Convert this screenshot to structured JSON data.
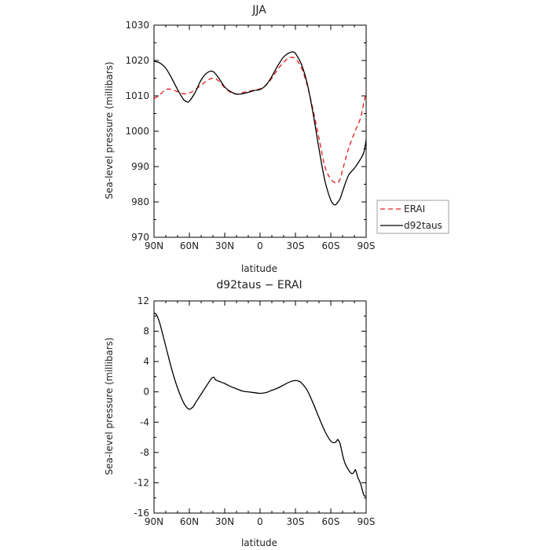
{
  "chart_data": [
    {
      "type": "line",
      "title": "JJA",
      "xlabel": "latitude",
      "ylabel": "Sea-level pressure (millibars)",
      "x_tick_labels": [
        "90N",
        "60N",
        "30N",
        "0",
        "30S",
        "60S",
        "90S"
      ],
      "x_ticks": [
        90,
        60,
        30,
        0,
        -30,
        -60,
        -90
      ],
      "xlim": [
        90,
        -90
      ],
      "ylim": [
        970,
        1030
      ],
      "y_ticks": [
        970,
        980,
        990,
        1000,
        1010,
        1020,
        1030
      ],
      "legend": {
        "placement": "right",
        "entries": [
          "ERAI",
          "d92taus"
        ]
      },
      "series": [
        {
          "name": "ERAI",
          "color": "#e41a1c",
          "dash": true,
          "x": [
            90,
            85,
            80,
            75,
            70,
            65,
            60,
            55,
            50,
            45,
            40,
            35,
            30,
            25,
            20,
            15,
            10,
            5,
            0,
            -5,
            -10,
            -15,
            -20,
            -25,
            -30,
            -35,
            -40,
            -45,
            -50,
            -55,
            -60,
            -65,
            -68,
            -70,
            -75,
            -80,
            -85,
            -88,
            -90
          ],
          "y": [
            1009.2,
            1010.3,
            1011.8,
            1011.8,
            1011.2,
            1010.6,
            1010.8,
            1011.8,
            1013.0,
            1014.3,
            1015.0,
            1014.2,
            1012.3,
            1011.0,
            1010.5,
            1010.9,
            1011.3,
            1011.6,
            1012.0,
            1013.0,
            1015.0,
            1017.5,
            1019.5,
            1020.8,
            1020.5,
            1018.0,
            1013.0,
            1006.0,
            998.0,
            990.0,
            986.5,
            985.3,
            986.5,
            989.0,
            995.0,
            999.5,
            1003.5,
            1008.0,
            1011.0
          ]
        },
        {
          "name": "d92taus",
          "color": "#000000",
          "dash": false,
          "x": [
            90,
            85,
            80,
            75,
            70,
            65,
            62,
            60,
            55,
            50,
            45,
            40,
            35,
            30,
            25,
            20,
            15,
            10,
            5,
            0,
            -5,
            -10,
            -15,
            -20,
            -25,
            -28,
            -30,
            -35,
            -40,
            -45,
            -50,
            -55,
            -60,
            -63,
            -65,
            -68,
            -70,
            -75,
            -80,
            -85,
            -88,
            -90
          ],
          "y": [
            1019.8,
            1019.3,
            1017.8,
            1015.0,
            1011.8,
            1009.0,
            1008.3,
            1008.5,
            1011.0,
            1014.5,
            1016.5,
            1016.9,
            1015.0,
            1012.5,
            1011.2,
            1010.5,
            1010.6,
            1011.0,
            1011.5,
            1011.8,
            1013.0,
            1015.5,
            1018.5,
            1021.0,
            1022.2,
            1022.4,
            1022.0,
            1019.0,
            1013.5,
            1005.0,
            995.0,
            986.0,
            980.5,
            979.2,
            979.5,
            981.0,
            983.0,
            987.5,
            989.5,
            992.0,
            994.0,
            997.5
          ]
        }
      ]
    },
    {
      "type": "line",
      "title": "d92taus − ERAI",
      "xlabel": "latitude",
      "ylabel": "Sea-level pressure (millibars)",
      "x_tick_labels": [
        "90N",
        "60N",
        "30N",
        "0",
        "30S",
        "60S",
        "90S"
      ],
      "x_ticks": [
        90,
        60,
        30,
        0,
        -30,
        -60,
        -90
      ],
      "xlim": [
        90,
        -90
      ],
      "ylim": [
        -16,
        12
      ],
      "y_ticks": [
        -16,
        -12,
        -8,
        -4,
        0,
        4,
        8,
        12
      ],
      "series": [
        {
          "color": "#000000",
          "dash": false,
          "x": [
            90,
            88,
            85,
            80,
            75,
            70,
            65,
            62,
            60,
            57,
            55,
            50,
            45,
            41,
            39,
            38,
            35,
            30,
            25,
            20,
            15,
            10,
            5,
            0,
            -5,
            -10,
            -15,
            -20,
            -25,
            -30,
            -33,
            -35,
            -40,
            -45,
            -50,
            -55,
            -60,
            -63,
            -65,
            -66,
            -68,
            -70,
            -72,
            -75,
            -78,
            -80,
            -81,
            -83,
            -85,
            -86,
            -88,
            -90
          ],
          "y": [
            10.4,
            10.2,
            9.0,
            6.0,
            3.0,
            0.5,
            -1.4,
            -2.1,
            -2.3,
            -2.0,
            -1.5,
            -0.3,
            0.9,
            1.8,
            1.9,
            1.6,
            1.4,
            1.1,
            0.7,
            0.4,
            0.1,
            0.0,
            -0.1,
            -0.2,
            -0.1,
            0.2,
            0.5,
            0.9,
            1.3,
            1.5,
            1.4,
            1.2,
            0.2,
            -1.5,
            -3.4,
            -5.2,
            -6.5,
            -6.7,
            -6.5,
            -6.3,
            -6.9,
            -8.3,
            -9.4,
            -10.3,
            -10.8,
            -10.5,
            -10.3,
            -11.3,
            -12.0,
            -12.5,
            -13.6,
            -13.8
          ]
        }
      ]
    }
  ]
}
